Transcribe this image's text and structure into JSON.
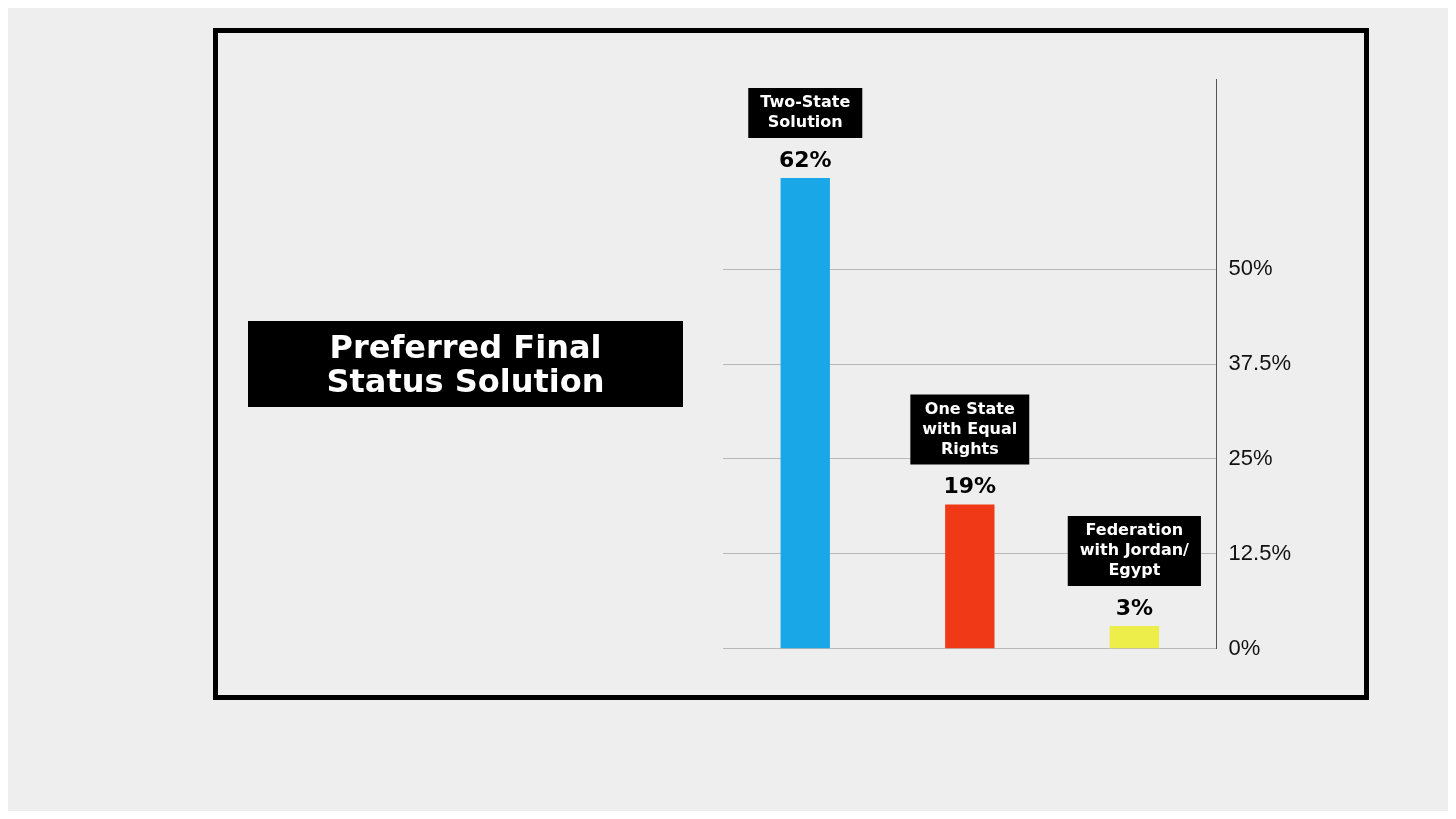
{
  "chart_data": {
    "type": "bar",
    "title": "Preferred Final Status Solution",
    "categories": [
      "Two-State Solution",
      "One State with Equal Rights",
      "Federation with Jordan/ Egypt"
    ],
    "values": [
      62,
      19,
      3
    ],
    "value_labels": [
      "62%",
      "19%",
      "3%"
    ],
    "colors": [
      "#1aa7e8",
      "#f03a17",
      "#eeee4a"
    ],
    "ylim": [
      0,
      75
    ],
    "yticks": [
      {
        "value": 0,
        "label": "0%"
      },
      {
        "value": 12.5,
        "label": "12.5%"
      },
      {
        "value": 25,
        "label": "25%"
      },
      {
        "value": 37.5,
        "label": "37.5%"
      },
      {
        "value": 50,
        "label": "50%"
      }
    ],
    "grid": "y"
  }
}
